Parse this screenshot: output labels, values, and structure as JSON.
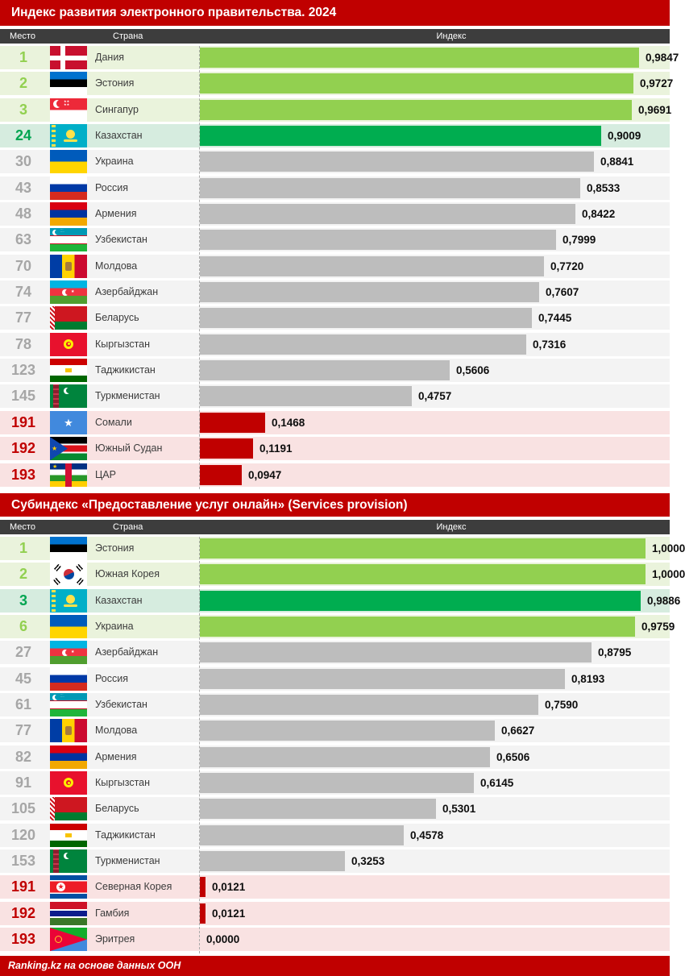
{
  "columns": {
    "place": "Место",
    "country": "Страна",
    "index": "Индекс"
  },
  "footer": {
    "text": "Ranking.kz на основе данных ООН"
  },
  "colors": {
    "accent_red": "#c00000",
    "header_dark": "#3d3d3d",
    "bar_green_light": "#92d050",
    "bar_green_dark": "#00ad50",
    "bar_gray": "#bdbdbd",
    "bar_red": "#c00000",
    "row_top_bg": "#eaf3dc",
    "row_kz_bg": "#d6ecdf",
    "row_mid_bg": "#f3f3f3",
    "row_bottom_bg": "#f9e2e2"
  },
  "chart_data": [
    {
      "type": "bar",
      "orientation": "horizontal",
      "title": "Индекс развития электронного правительства. 2024",
      "value_range": [
        0,
        1
      ],
      "rows": [
        {
          "rank": "1",
          "country": "Дания",
          "flag": "flag-denmark-icon",
          "value": 0.9847,
          "label": "0,9847",
          "tier": "top"
        },
        {
          "rank": "2",
          "country": "Эстония",
          "flag": "flag-estonia-icon",
          "value": 0.9727,
          "label": "0,9727",
          "tier": "top"
        },
        {
          "rank": "3",
          "country": "Сингапур",
          "flag": "flag-singapore-icon",
          "value": 0.9691,
          "label": "0,9691",
          "tier": "top"
        },
        {
          "rank": "24",
          "country": "Казахстан",
          "flag": "flag-kazakhstan-icon",
          "value": 0.9009,
          "label": "0,9009",
          "tier": "kz"
        },
        {
          "rank": "30",
          "country": "Украина",
          "flag": "flag-ukraine-icon",
          "value": 0.8841,
          "label": "0,8841",
          "tier": "mid"
        },
        {
          "rank": "43",
          "country": "Россия",
          "flag": "flag-russia-icon",
          "value": 0.8533,
          "label": "0,8533",
          "tier": "mid"
        },
        {
          "rank": "48",
          "country": "Армения",
          "flag": "flag-armenia-icon",
          "value": 0.8422,
          "label": "0,8422",
          "tier": "mid"
        },
        {
          "rank": "63",
          "country": "Узбекистан",
          "flag": "flag-uzbekistan-icon",
          "value": 0.7999,
          "label": "0,7999",
          "tier": "mid"
        },
        {
          "rank": "70",
          "country": "Молдова",
          "flag": "flag-moldova-icon",
          "value": 0.772,
          "label": "0,7720",
          "tier": "mid"
        },
        {
          "rank": "74",
          "country": "Азербайджан",
          "flag": "flag-azerbaijan-icon",
          "value": 0.7607,
          "label": "0,7607",
          "tier": "mid"
        },
        {
          "rank": "77",
          "country": "Беларусь",
          "flag": "flag-belarus-icon",
          "value": 0.7445,
          "label": "0,7445",
          "tier": "mid"
        },
        {
          "rank": "78",
          "country": "Кыргызстан",
          "flag": "flag-kyrgyzstan-icon",
          "value": 0.7316,
          "label": "0,7316",
          "tier": "mid"
        },
        {
          "rank": "123",
          "country": "Таджикистан",
          "flag": "flag-tajikistan-icon",
          "value": 0.5606,
          "label": "0,5606",
          "tier": "mid"
        },
        {
          "rank": "145",
          "country": "Туркменистан",
          "flag": "flag-turkmenistan-icon",
          "value": 0.4757,
          "label": "0,4757",
          "tier": "mid"
        },
        {
          "rank": "191",
          "country": "Сомали",
          "flag": "flag-somalia-icon",
          "value": 0.1468,
          "label": "0,1468",
          "tier": "bottom"
        },
        {
          "rank": "192",
          "country": "Южный Судан",
          "flag": "flag-south-sudan-icon",
          "value": 0.1191,
          "label": "0,1191",
          "tier": "bottom"
        },
        {
          "rank": "193",
          "country": "ЦАР",
          "flag": "flag-car-icon",
          "value": 0.0947,
          "label": "0,0947",
          "tier": "bottom"
        }
      ]
    },
    {
      "type": "bar",
      "orientation": "horizontal",
      "title": "Субиндекс «Предоставление услуг онлайн» (Services provision)",
      "value_range": [
        0,
        1
      ],
      "rows": [
        {
          "rank": "1",
          "country": "Эстония",
          "flag": "flag-estonia-icon",
          "value": 1.0,
          "label": "1,0000",
          "tier": "top"
        },
        {
          "rank": "2",
          "country": "Южная Корея",
          "flag": "flag-south-korea-icon",
          "value": 1.0,
          "label": "1,0000",
          "tier": "top"
        },
        {
          "rank": "3",
          "country": "Казахстан",
          "flag": "flag-kazakhstan-icon",
          "value": 0.9886,
          "label": "0,9886",
          "tier": "kz"
        },
        {
          "rank": "6",
          "country": "Украина",
          "flag": "flag-ukraine-icon",
          "value": 0.9759,
          "label": "0,9759",
          "tier": "top"
        },
        {
          "rank": "27",
          "country": "Азербайджан",
          "flag": "flag-azerbaijan-icon",
          "value": 0.8795,
          "label": "0,8795",
          "tier": "mid"
        },
        {
          "rank": "45",
          "country": "Россия",
          "flag": "flag-russia-icon",
          "value": 0.8193,
          "label": "0,8193",
          "tier": "mid"
        },
        {
          "rank": "61",
          "country": "Узбекистан",
          "flag": "flag-uzbekistan-icon",
          "value": 0.759,
          "label": "0,7590",
          "tier": "mid"
        },
        {
          "rank": "77",
          "country": "Молдова",
          "flag": "flag-moldova-icon",
          "value": 0.6627,
          "label": "0,6627",
          "tier": "mid"
        },
        {
          "rank": "82",
          "country": "Армения",
          "flag": "flag-armenia-icon",
          "value": 0.6506,
          "label": "0,6506",
          "tier": "mid"
        },
        {
          "rank": "91",
          "country": "Кыргызстан",
          "flag": "flag-kyrgyzstan-icon",
          "value": 0.6145,
          "label": "0,6145",
          "tier": "mid"
        },
        {
          "rank": "105",
          "country": "Беларусь",
          "flag": "flag-belarus-icon",
          "value": 0.5301,
          "label": "0,5301",
          "tier": "mid"
        },
        {
          "rank": "120",
          "country": "Таджикистан",
          "flag": "flag-tajikistan-icon",
          "value": 0.4578,
          "label": "0,4578",
          "tier": "mid"
        },
        {
          "rank": "153",
          "country": "Туркменистан",
          "flag": "flag-turkmenistan-icon",
          "value": 0.3253,
          "label": "0,3253",
          "tier": "mid"
        },
        {
          "rank": "191",
          "country": "Северная Корея",
          "flag": "flag-north-korea-icon",
          "value": 0.0121,
          "label": "0,0121",
          "tier": "bottom"
        },
        {
          "rank": "192",
          "country": "Гамбия",
          "flag": "flag-gambia-icon",
          "value": 0.0121,
          "label": "0,0121",
          "tier": "bottom"
        },
        {
          "rank": "193",
          "country": "Эритрея",
          "flag": "flag-eritrea-icon",
          "value": 0.0,
          "label": "0,0000",
          "tier": "bottom"
        }
      ]
    }
  ]
}
